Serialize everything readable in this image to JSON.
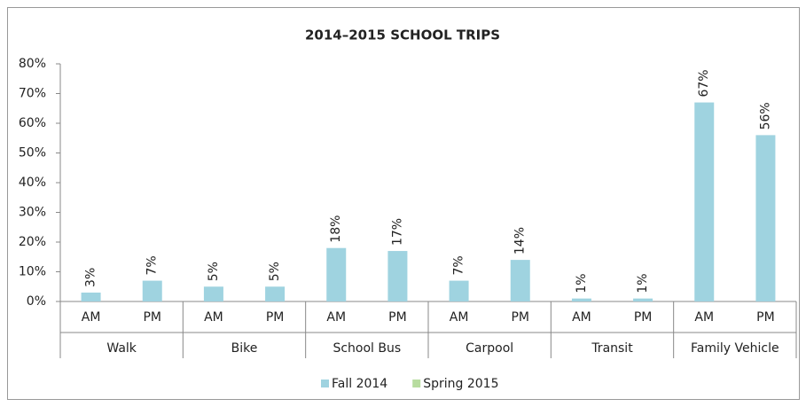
{
  "chart_data": {
    "type": "bar",
    "title": "2014–2015 SCHOOL TRIPS",
    "categories": [
      "AM",
      "PM",
      "AM",
      "PM",
      "AM",
      "PM",
      "AM",
      "PM",
      "AM",
      "PM",
      "AM",
      "PM"
    ],
    "groups": [
      "Walk",
      "Bike",
      "School Bus",
      "Carpool",
      "Transit",
      "Family Vehicle"
    ],
    "series": [
      {
        "name": "Fall 2014",
        "color": "#9fd3e0",
        "values": [
          3,
          7,
          5,
          5,
          18,
          17,
          7,
          14,
          1,
          1,
          67,
          56
        ],
        "value_labels": [
          "3%",
          "7%",
          "5%",
          "5%",
          "18%",
          "17%",
          "7%",
          "14%",
          "1%",
          "1%",
          "67%",
          "56%"
        ]
      },
      {
        "name": "Spring 2015",
        "color": "#b7dc9f",
        "values": [
          null,
          null,
          null,
          null,
          null,
          null,
          null,
          null,
          null,
          null,
          null,
          null
        ]
      }
    ],
    "ylim": [
      0,
      80
    ],
    "yticks": [
      {
        "value": 0,
        "label": "0%"
      },
      {
        "value": 10,
        "label": "10%"
      },
      {
        "value": 20,
        "label": "20%"
      },
      {
        "value": 30,
        "label": "30%"
      },
      {
        "value": 40,
        "label": "40%"
      },
      {
        "value": 50,
        "label": "50%"
      },
      {
        "value": 60,
        "label": "60%"
      },
      {
        "value": 70,
        "label": "70%"
      },
      {
        "value": 80,
        "label": "80%"
      }
    ],
    "legend": "bottom"
  }
}
